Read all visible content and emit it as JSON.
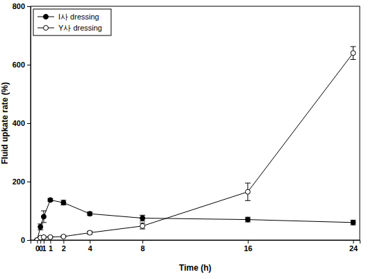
{
  "chart_data": {
    "type": "line",
    "x_label": "Time (h)",
    "y_label": "Fluid upkate rate (%)",
    "x": [
      0,
      0.25,
      0.5,
      1,
      2,
      4,
      8,
      16,
      24
    ],
    "series": [
      {
        "name": "I사 dressing",
        "color": "#000000",
        "marker": "filled-circle",
        "values": [
          0,
          45,
          80,
          137,
          128,
          90,
          75,
          70,
          60
        ],
        "errors": [
          3,
          10,
          20,
          5,
          8,
          6,
          10,
          8,
          8
        ]
      },
      {
        "name": "Y사 dressing",
        "color": "#000000",
        "marker": "open-circle",
        "values": [
          0,
          8,
          10,
          10,
          12,
          25,
          48,
          165,
          640
        ],
        "errors": [
          2,
          3,
          3,
          3,
          3,
          5,
          10,
          30,
          22
        ]
      }
    ],
    "xlim": [
      -0.5,
      24.5
    ],
    "xticks": [
      0,
      {
        "value": 0.25,
        "label": "0"
      },
      {
        "value": 0.5,
        "label": "1"
      },
      1,
      2,
      4,
      8,
      16,
      24
    ],
    "ylim": [
      0,
      800
    ],
    "yticks": [
      0,
      200,
      400,
      600,
      800
    ],
    "legend": "top-left",
    "grid": false
  }
}
